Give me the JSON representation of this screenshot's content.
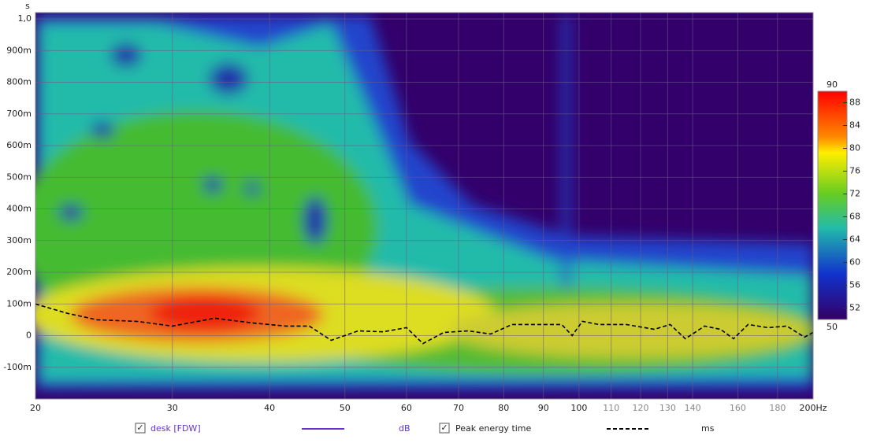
{
  "chart_data": {
    "type": "spectrogram",
    "y_label": "s",
    "x_scale": "log",
    "xlim": [
      20,
      200
    ],
    "xticks": [
      20,
      30,
      40,
      50,
      60,
      70,
      80,
      90,
      100,
      110,
      120,
      130,
      140,
      160,
      180,
      {
        "value": 200,
        "label": "200Hz"
      }
    ],
    "ylim": [
      -0.2,
      1.02
    ],
    "yticks": [
      {
        "value": 1.0,
        "label": "1,0"
      },
      {
        "value": 0.9,
        "label": "900m"
      },
      {
        "value": 0.8,
        "label": "800m"
      },
      {
        "value": 0.7,
        "label": "700m"
      },
      {
        "value": 0.6,
        "label": "600m"
      },
      {
        "value": 0.5,
        "label": "500m"
      },
      {
        "value": 0.4,
        "label": "400m"
      },
      {
        "value": 0.3,
        "label": "300m"
      },
      {
        "value": 0.2,
        "label": "200m"
      },
      {
        "value": 0.1,
        "label": "100m"
      },
      0,
      {
        "value": -0.1,
        "label": "-100m"
      }
    ],
    "grid": true,
    "colorbar": {
      "lim": [
        50,
        90
      ],
      "ticks": [
        52,
        56,
        60,
        64,
        68,
        72,
        76,
        80,
        84,
        88
      ]
    },
    "measurement": {
      "name": "desk [FDW]",
      "unit": "dB",
      "color": "#6633cc"
    },
    "series": [
      {
        "name": "Peak energy time",
        "unit": "ms",
        "color": "#000000",
        "dashed": true,
        "x": [
          20,
          22,
          24,
          27,
          30,
          34,
          38,
          42,
          45,
          48,
          52,
          56,
          60,
          63,
          67,
          72,
          77,
          82,
          90,
          95,
          98,
          101,
          106,
          115,
          125,
          131,
          137,
          145,
          152,
          158,
          165,
          175,
          185,
          195,
          200
        ],
        "values": [
          0.1,
          0.07,
          0.05,
          0.045,
          0.03,
          0.055,
          0.04,
          0.03,
          0.03,
          -0.015,
          0.015,
          0.012,
          0.025,
          -0.025,
          0.01,
          0.015,
          0.005,
          0.035,
          0.035,
          0.035,
          0,
          0.045,
          0.035,
          0.035,
          0.02,
          0.035,
          -0.01,
          0.03,
          0.02,
          -0.01,
          0.035,
          0.025,
          0.03,
          -0.005,
          0.01
        ]
      }
    ]
  }
}
